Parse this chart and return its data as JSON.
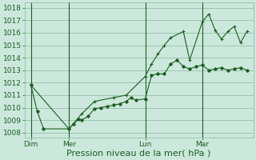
{
  "background_color": "#cce8dc",
  "grid_color": "#88b8a0",
  "line_color": "#1a5e20",
  "marker_color": "#1a5e20",
  "ylabel_ticks": [
    1008,
    1009,
    1010,
    1011,
    1012,
    1013,
    1014,
    1015,
    1016,
    1017,
    1018
  ],
  "ylim": [
    1007.6,
    1018.4
  ],
  "xlabel": "Pression niveau de la mer( hPa )",
  "xlabel_fontsize": 8,
  "tick_fontsize": 6.5,
  "xtick_labels": [
    "Dim",
    "Mer",
    "Lun",
    "Mar"
  ],
  "xtick_positions": [
    0.0,
    24.0,
    72.0,
    108.0
  ],
  "vline_positions": [
    0.0,
    24.0,
    72.0,
    108.0
  ],
  "xlim": [
    -4,
    140
  ],
  "series1_x": [
    0,
    4,
    8,
    24,
    27,
    30,
    32,
    36,
    40,
    44,
    48,
    52,
    56,
    60,
    63,
    66,
    72,
    76,
    80,
    84,
    88,
    92,
    96,
    100,
    104,
    108,
    112,
    116,
    120,
    124,
    128,
    132,
    136
  ],
  "series1_y": [
    1011.8,
    1009.7,
    1008.3,
    1008.3,
    1008.7,
    1009.1,
    1009.0,
    1009.3,
    1009.9,
    1010.0,
    1010.1,
    1010.2,
    1010.3,
    1010.5,
    1010.8,
    1010.6,
    1010.7,
    1012.6,
    1012.7,
    1012.7,
    1013.5,
    1013.8,
    1013.3,
    1013.1,
    1013.3,
    1013.4,
    1013.0,
    1013.1,
    1013.2,
    1013.0,
    1013.1,
    1013.2,
    1013.0
  ],
  "series2_x": [
    0,
    24,
    32,
    40,
    52,
    60,
    72,
    76,
    80,
    84,
    88,
    96,
    100,
    108,
    112,
    116,
    120,
    124,
    128,
    132,
    136
  ],
  "series2_y": [
    1011.8,
    1008.3,
    1009.5,
    1010.5,
    1010.8,
    1011.0,
    1012.5,
    1013.5,
    1014.3,
    1015.0,
    1015.6,
    1016.1,
    1013.8,
    1016.9,
    1017.5,
    1016.2,
    1015.5,
    1016.1,
    1016.5,
    1015.2,
    1016.1
  ]
}
